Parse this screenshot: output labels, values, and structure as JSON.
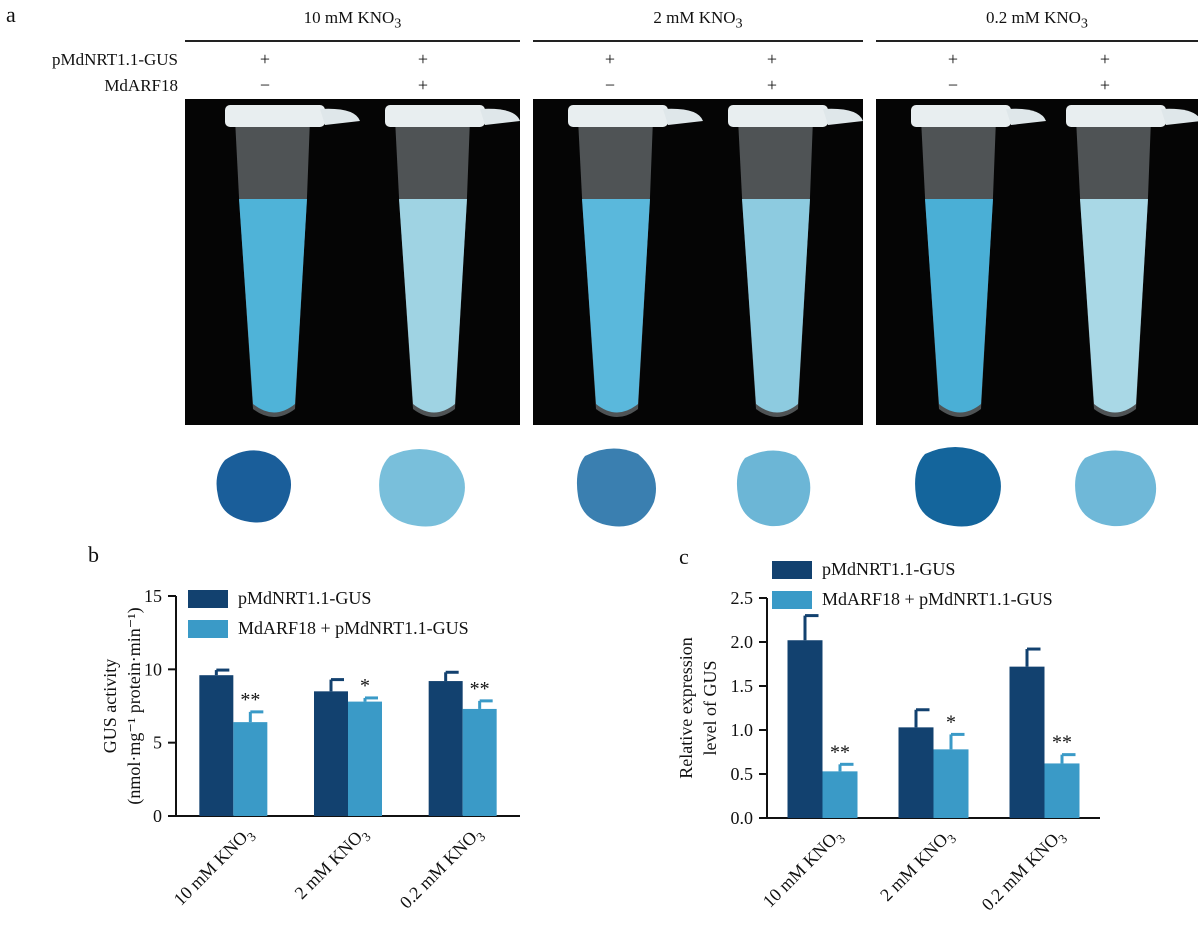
{
  "panel_a": {
    "letter": "a",
    "conditions": [
      {
        "label": "10 mM KNO",
        "sub": "3"
      },
      {
        "label": "2 mM KNO",
        "sub": "3"
      },
      {
        "label": "0.2 mM KNO",
        "sub": "3"
      }
    ],
    "row_labels": [
      "pMdNRT1.1-GUS",
      "MdARF18"
    ],
    "rows": [
      [
        "+",
        "+",
        "+",
        "+",
        "+",
        "+"
      ],
      [
        "−",
        "+",
        "−",
        "+",
        "−",
        "+"
      ]
    ]
  },
  "colors": {
    "series1": "#12416f",
    "series2": "#3a9ac7",
    "tube_dark": "#4fb3d8",
    "tube_light": "#9fd3e3",
    "callus_dark": "#1a5e9a",
    "callus_light": "#79bfdb"
  },
  "chart_data": [
    {
      "type": "bar",
      "panel": "b",
      "categories": [
        "10 mM KNO",
        "2 mM KNO",
        "0.2 mM KNO"
      ],
      "category_sub": "3",
      "series": [
        {
          "name": "pMdNRT1.1-GUS",
          "values": [
            9.6,
            8.5,
            9.2
          ],
          "errors": [
            0.35,
            0.8,
            0.6
          ]
        },
        {
          "name": "MdARF18 + pMdNRT1.1-GUS",
          "values": [
            6.4,
            7.8,
            7.3
          ],
          "errors": [
            0.7,
            0.25,
            0.55
          ]
        }
      ],
      "significance": [
        "**",
        "*",
        "**"
      ],
      "ylabel_line1": "GUS activity",
      "ylabel_line2": "(nmol·mg⁻¹ protein·min⁻¹)",
      "ylim": [
        0,
        15
      ],
      "yticks": [
        0,
        5,
        10,
        15
      ],
      "legend_position": "top"
    },
    {
      "type": "bar",
      "panel": "c",
      "categories": [
        "10 mM KNO",
        "2 mM KNO",
        "0.2 mM KNO"
      ],
      "category_sub": "3",
      "series": [
        {
          "name": "pMdNRT1.1-GUS",
          "values": [
            2.02,
            1.03,
            1.72
          ],
          "errors": [
            0.28,
            0.2,
            0.2
          ]
        },
        {
          "name": "MdARF18 + pMdNRT1.1-GUS",
          "values": [
            0.53,
            0.78,
            0.62
          ],
          "errors": [
            0.08,
            0.17,
            0.1
          ]
        }
      ],
      "significance": [
        "**",
        "*",
        "**"
      ],
      "ylabel_line1": "Relative expression",
      "ylabel_line2": "level of GUS",
      "ylim": [
        0,
        2.5
      ],
      "yticks": [
        "0.0",
        "0.5",
        "1.0",
        "1.5",
        "2.0",
        "2.5"
      ],
      "legend_position": "top"
    }
  ]
}
